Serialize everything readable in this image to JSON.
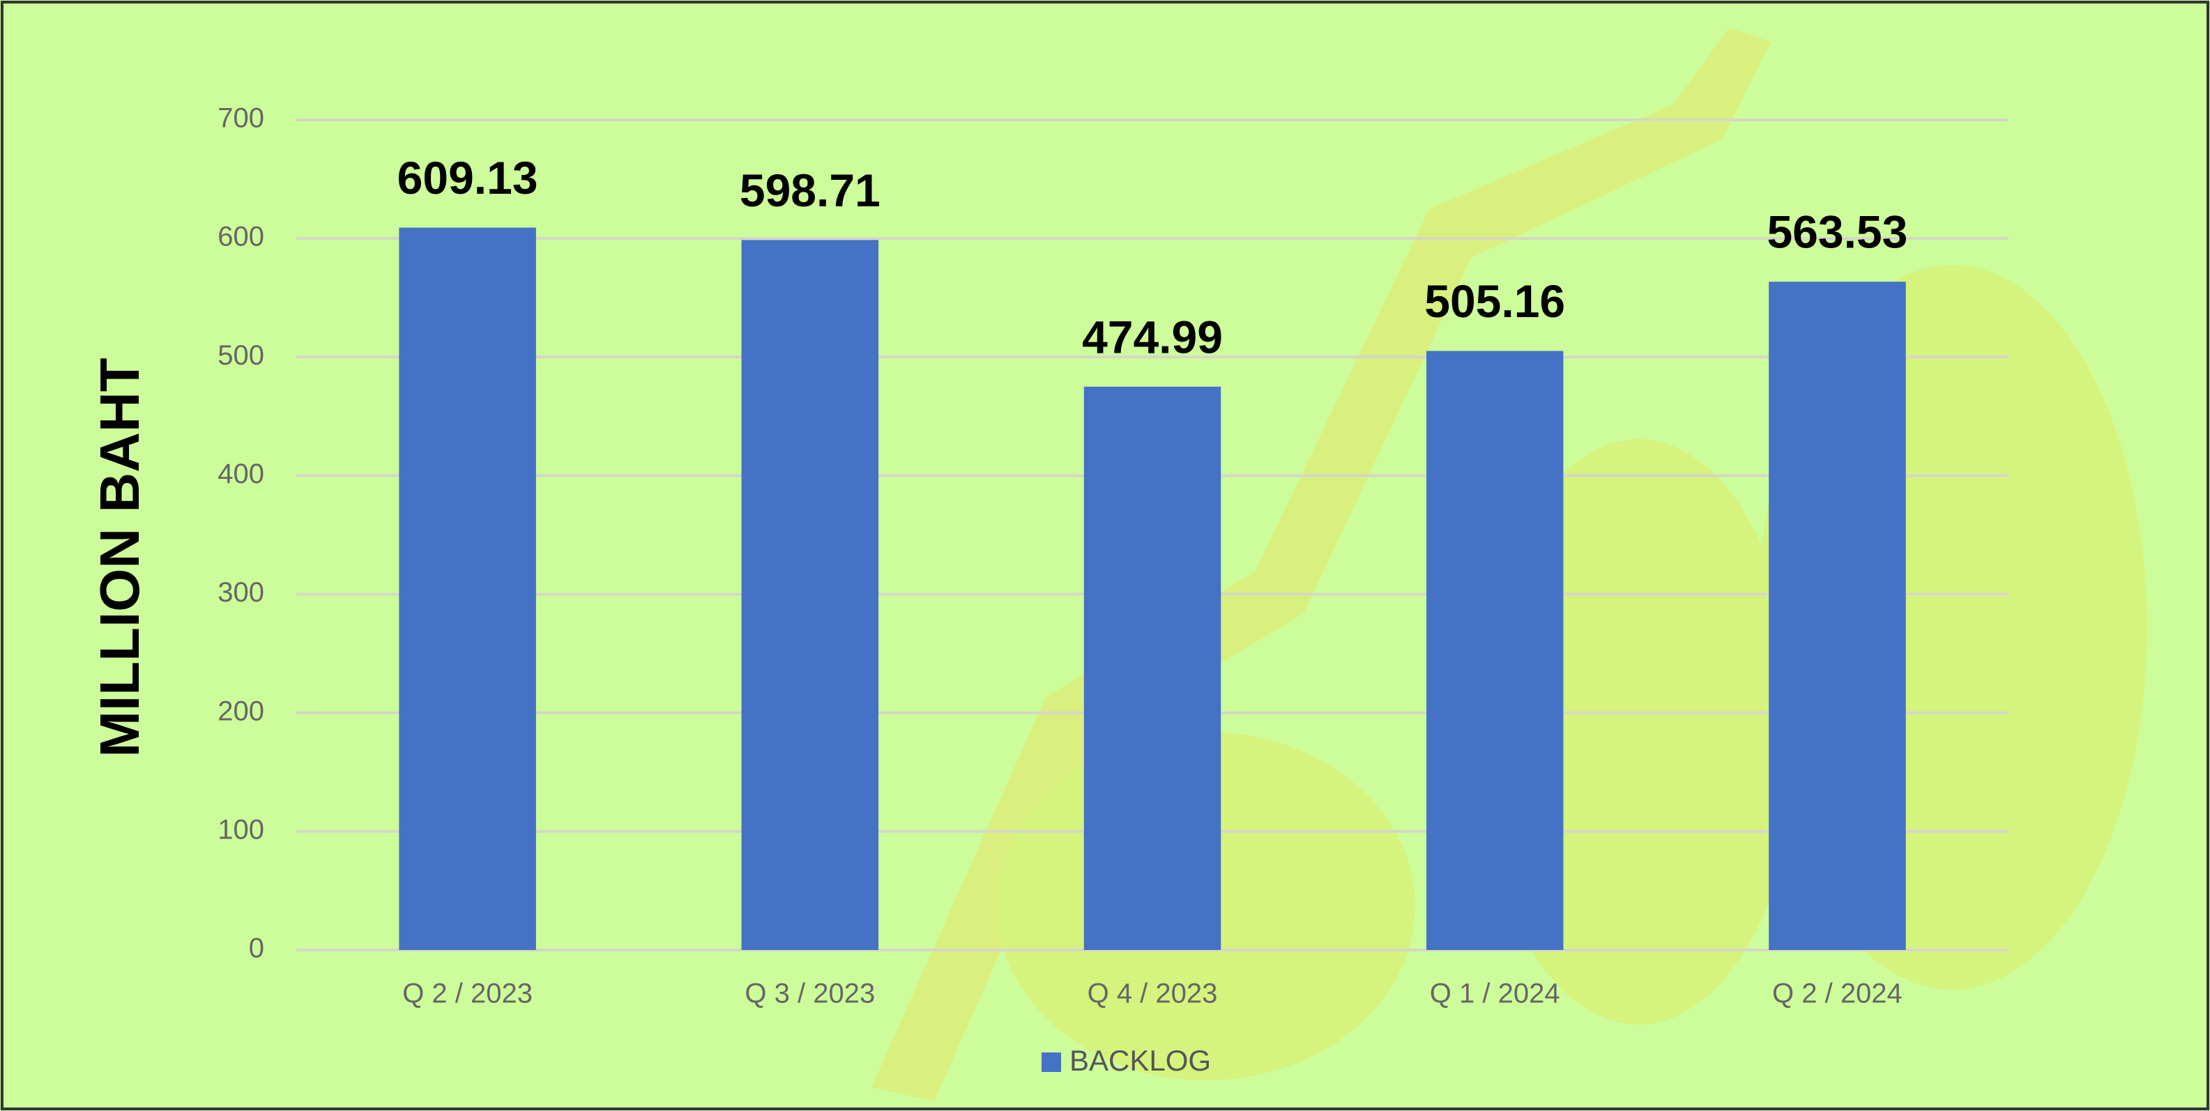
{
  "chart_data": {
    "type": "bar",
    "y_label": "MILLION BAHT",
    "categories": [
      "Q 2 / 2023",
      "Q 3 / 2023",
      "Q 4 / 2023",
      "Q 1 / 2024",
      "Q 2 / 2024"
    ],
    "series": [
      {
        "name": "BACKLOG",
        "color": "#4472c4",
        "values": [
          609.13,
          598.71,
          474.99,
          505.16,
          563.53
        ]
      }
    ],
    "ylim": [
      0,
      700
    ],
    "yticks": [
      0,
      100,
      200,
      300,
      400,
      500,
      600,
      700
    ],
    "grid": true,
    "legend": "bottom"
  }
}
